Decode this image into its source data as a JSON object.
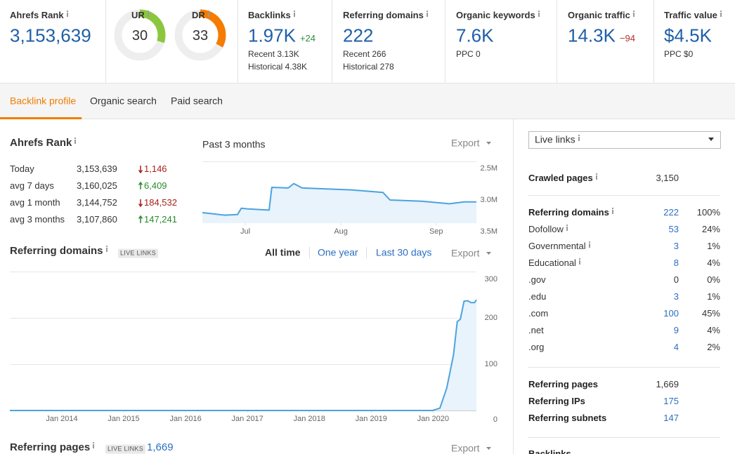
{
  "metrics": [
    {
      "label": "Ahrefs Rank",
      "value": "3,153,639"
    },
    {
      "label": "UR",
      "value": 30,
      "color": "#8cc63e"
    },
    {
      "label": "DR",
      "value": 33,
      "color": "#f57c00"
    },
    {
      "label": "Backlinks",
      "value": "1.97K",
      "change": "+24",
      "details": [
        "Recent 3.13K",
        "Historical 4.38K"
      ]
    },
    {
      "label": "Referring domains",
      "value": "222",
      "details": [
        "Recent 266",
        "Historical 278"
      ]
    },
    {
      "label": "Organic keywords",
      "value": "7.6K",
      "details": [
        "PPC 0"
      ]
    },
    {
      "label": "Organic traffic",
      "value": "14.3K",
      "change": "−94"
    },
    {
      "label": "Traffic value",
      "value": "$4.5K",
      "details": [
        "PPC $0"
      ]
    }
  ],
  "tabs": {
    "items": [
      "Backlink profile",
      "Organic search",
      "Paid search"
    ],
    "active": 0
  },
  "rank": {
    "title": "Ahrefs Rank",
    "rows": [
      {
        "label": "Today",
        "value": "3,153,639",
        "change": "1,146",
        "direction": "down"
      },
      {
        "label": "avg 7 days",
        "value": "3,160,025",
        "change": "6,409",
        "direction": "up"
      },
      {
        "label": "avg 1 month",
        "value": "3,144,752",
        "change": "184,532",
        "direction": "down"
      },
      {
        "label": "avg 3 months",
        "value": "3,107,860",
        "change": "147,241",
        "direction": "up"
      }
    ]
  },
  "rank_chart": {
    "type": "line",
    "subtitle": "Past 3 months",
    "export": "Export",
    "x": [
      0,
      7.5,
      11.8,
      13.1,
      15,
      22.4,
      23.3,
      28.8,
      30.7,
      33.5,
      50,
      60.6,
      63,
      73.6,
      83,
      87.8,
      92
    ],
    "values": [
      3200000,
      3240000,
      3230000,
      3130000,
      3140000,
      3160000,
      2800000,
      2810000,
      2740000,
      2810000,
      2840000,
      2880000,
      3000000,
      3020000,
      3060000,
      3030000,
      3030000
    ],
    "xlim": [
      0,
      92
    ],
    "xticks": [
      {
        "value": 14.4,
        "label": "Jul"
      },
      {
        "value": 46.5,
        "label": "Aug"
      },
      {
        "value": 78.5,
        "label": "Sep"
      }
    ],
    "ylim": [
      2500000,
      3500000
    ],
    "yticks": [
      {
        "value": 2500000,
        "label": "2.5M"
      },
      {
        "value": 3000000,
        "label": "3.0M"
      },
      {
        "value": 3500000,
        "label": "3.5M"
      }
    ],
    "inverted": true,
    "color": "#4aa3df"
  },
  "domains_chart": {
    "type": "area",
    "title": "Referring domains",
    "badge": "LIVE LINKS",
    "ranges": [
      "All time",
      "One year",
      "Last 30 days"
    ],
    "active_range": 0,
    "export": "Export",
    "x": [
      2013.16,
      2019.99,
      2020.11,
      2020.22,
      2020.33,
      2020.39,
      2020.44,
      2020.5,
      2020.56,
      2020.61,
      2020.67,
      2020.7
    ],
    "values": [
      0,
      0,
      5,
      48,
      120,
      192,
      197,
      236,
      237,
      233,
      233,
      239
    ],
    "xlim": [
      2013.16,
      2020.7
    ],
    "xticks": [
      {
        "value": 2014,
        "label": "Jan 2014"
      },
      {
        "value": 2015,
        "label": "Jan 2015"
      },
      {
        "value": 2016,
        "label": "Jan 2016"
      },
      {
        "value": 2017,
        "label": "Jan 2017"
      },
      {
        "value": 2018,
        "label": "Jan 2018"
      },
      {
        "value": 2019,
        "label": "Jan 2019"
      },
      {
        "value": 2020,
        "label": "Jan 2020"
      }
    ],
    "ylim": [
      0,
      300
    ],
    "yticks": [
      0,
      100,
      200,
      300
    ],
    "grid": true,
    "color": "#4aa3df"
  },
  "referring_pages": {
    "title": "Referring pages",
    "badge": "LIVE LINKS",
    "value": "1,669",
    "export": "Export"
  },
  "side": {
    "filter": "Live links",
    "groups": [
      [
        {
          "label": "Crawled pages",
          "value": "3,150",
          "bold": true,
          "info": true
        }
      ],
      [
        {
          "label": "Referring domains",
          "value": "222",
          "share": "100%",
          "bold": true,
          "info": true,
          "linked": true
        },
        {
          "label": "Dofollow",
          "value": "53",
          "share": "24%",
          "info": true,
          "linked": true
        },
        {
          "label": "Governmental",
          "value": "3",
          "share": "1%",
          "info": true,
          "linked": true
        },
        {
          "label": "Educational",
          "value": "8",
          "share": "4%",
          "info": true,
          "linked": true
        },
        {
          "label": ".gov",
          "value": "0",
          "share": "0%"
        },
        {
          "label": ".edu",
          "value": "3",
          "share": "1%",
          "linked": true
        },
        {
          "label": ".com",
          "value": "100",
          "share": "45%",
          "linked": true
        },
        {
          "label": ".net",
          "value": "9",
          "share": "4%",
          "linked": true
        },
        {
          "label": ".org",
          "value": "4",
          "share": "2%",
          "linked": true
        }
      ],
      [
        {
          "label": "Referring pages",
          "value": "1,669",
          "bold": true
        },
        {
          "label": "Referring IPs",
          "value": "175",
          "bold": true,
          "linked": true
        },
        {
          "label": "Referring subnets",
          "value": "147",
          "bold": true,
          "linked": true
        }
      ],
      [
        {
          "label": "Backlinks",
          "bold": true
        }
      ]
    ]
  }
}
